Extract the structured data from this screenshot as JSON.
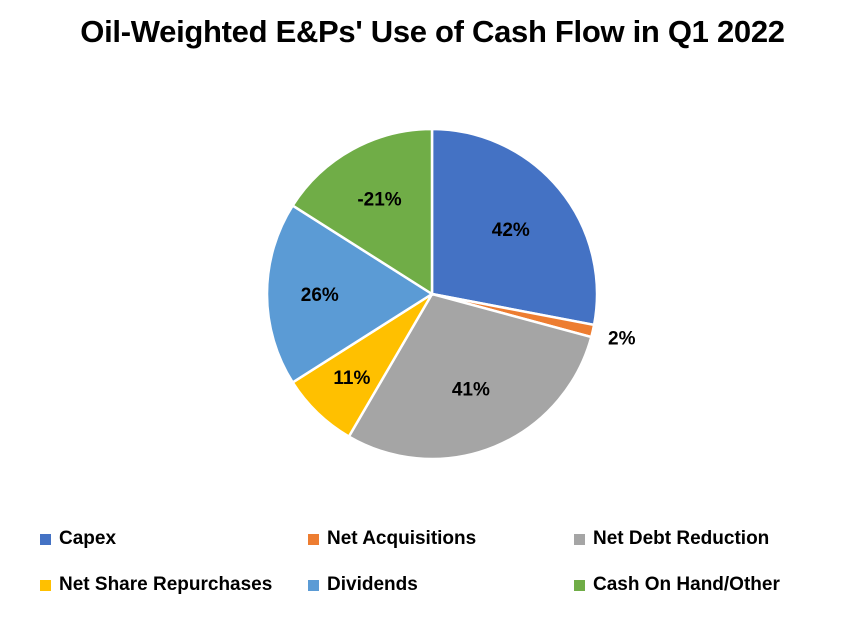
{
  "chart_data": {
    "type": "pie",
    "title": "Oil-Weighted E&Ps' Use of Cash Flow in Q1 2022",
    "slices": [
      {
        "name": "Capex",
        "label": "42%",
        "share": 0.28,
        "color": "#4472C4"
      },
      {
        "name": "Net Acquisitions",
        "label": "2%",
        "share": 0.012,
        "color": "#ED7D31"
      },
      {
        "name": "Net Debt Reduction",
        "label": "41%",
        "share": 0.292,
        "color": "#A5A5A5"
      },
      {
        "name": "Net Share Repurchases",
        "label": "11%",
        "share": 0.076,
        "color": "#FFC000"
      },
      {
        "name": "Dividends",
        "label": "26%",
        "share": 0.18,
        "color": "#5B9BD5"
      },
      {
        "name": "Cash On Hand/Other",
        "label": "-21%",
        "share": 0.16,
        "color": "#70AD47"
      }
    ],
    "legend_position": "bottom"
  }
}
